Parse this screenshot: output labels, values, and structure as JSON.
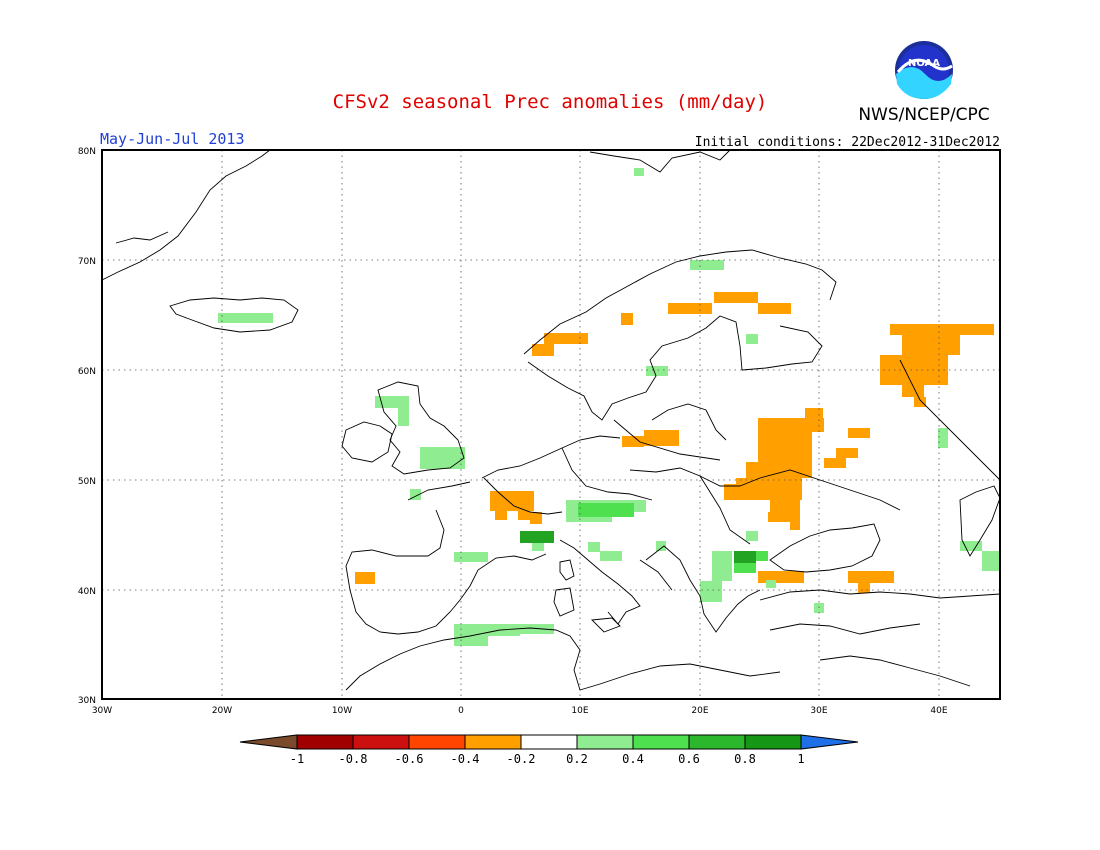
{
  "header": {
    "title": "CFSv2 seasonal Prec anomalies (mm/day)",
    "period": "May-Jun-Jul 2013",
    "initial_conditions": "Initial conditions: 22Dec2012-31Dec2012",
    "agency": "NWS/NCEP/CPC",
    "logo_text": "NOAA"
  },
  "map": {
    "lon_range": [
      -30,
      45
    ],
    "lat_range": [
      30,
      80
    ],
    "lon_ticks": [
      "30W",
      "20W",
      "10W",
      "0",
      "10E",
      "20E",
      "30E",
      "40E"
    ],
    "lat_ticks": [
      "80N",
      "70N",
      "60N",
      "50N",
      "40N",
      "30N"
    ],
    "grid": "dotted"
  },
  "colorbar": {
    "tick_labels": [
      "-1",
      "-0.8",
      "-0.6",
      "-0.4",
      "-0.2",
      "0.2",
      "0.4",
      "0.6",
      "0.8",
      "1"
    ],
    "colors": [
      "#7a4a2a",
      "#a00000",
      "#cc1010",
      "#ff4500",
      "#ff9f00",
      "#ffffff",
      "#90ec90",
      "#4fe04f",
      "#2cb82c",
      "#159615",
      "#1e6fe8"
    ]
  },
  "anomaly_colors": {
    "dry_orange": "#ff9f00",
    "wet_light": "#90ec90",
    "wet_mid": "#4fe04f",
    "wet_dark": "#22a322"
  }
}
